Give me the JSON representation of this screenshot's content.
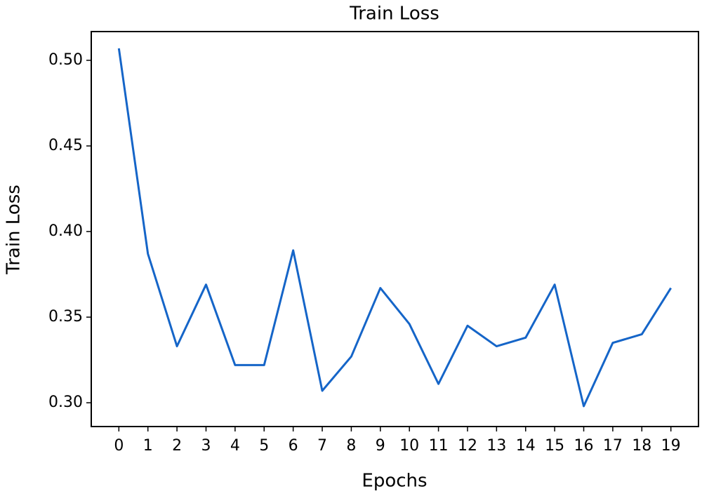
{
  "chart_data": {
    "type": "line",
    "title": "Train Loss",
    "x_label": "Epochs",
    "y_label": "Train Loss",
    "x": [
      0,
      1,
      2,
      3,
      4,
      5,
      6,
      7,
      8,
      9,
      10,
      11,
      12,
      13,
      14,
      15,
      16,
      17,
      18,
      19
    ],
    "series": [
      {
        "name": "Train Loss",
        "color": "#1565c8",
        "values": [
          0.507,
          0.387,
          0.333,
          0.369,
          0.322,
          0.322,
          0.389,
          0.307,
          0.327,
          0.367,
          0.346,
          0.311,
          0.345,
          0.333,
          0.338,
          0.369,
          0.298,
          0.335,
          0.34,
          0.367
        ]
      }
    ],
    "xlim": [
      -0.95,
      19.95
    ],
    "xticks": [
      0,
      1,
      2,
      3,
      4,
      5,
      6,
      7,
      8,
      9,
      10,
      11,
      12,
      13,
      14,
      15,
      16,
      17,
      18,
      19
    ],
    "ylim": [
      0.2861,
      0.5168
    ],
    "yticks": [
      {
        "value": 0.3,
        "label": "0.30"
      },
      {
        "value": 0.35,
        "label": "0.35"
      },
      {
        "value": 0.4,
        "label": "0.40"
      },
      {
        "value": 0.45,
        "label": "0.45"
      },
      {
        "value": 0.5,
        "label": "0.50"
      }
    ],
    "grid": false
  }
}
